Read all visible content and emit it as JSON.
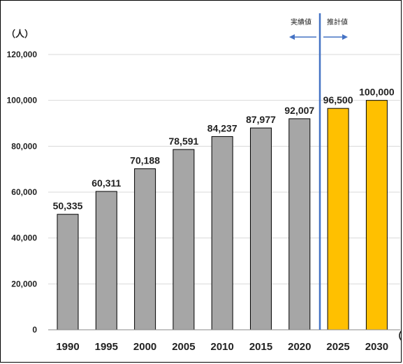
{
  "chart_data": {
    "type": "bar",
    "ylabel": "（人）",
    "xlabel": "（年",
    "ylim": [
      0,
      120000
    ],
    "yticks": [
      "0",
      "20,000",
      "40,000",
      "60,000",
      "80,000",
      "100,000",
      "120,000"
    ],
    "grid": true,
    "categories": [
      "1990",
      "1995",
      "2000",
      "2005",
      "2010",
      "2015",
      "2020",
      "2025",
      "2030"
    ],
    "values": [
      50335,
      60311,
      70188,
      78591,
      84237,
      87977,
      92007,
      96500,
      100000
    ],
    "value_labels": [
      "50,335",
      "60,311",
      "70,188",
      "78,591",
      "84,237",
      "87,977",
      "92,007",
      "96,500",
      "100,000"
    ],
    "kinds": [
      "actual",
      "actual",
      "actual",
      "actual",
      "actual",
      "actual",
      "actual",
      "estimate",
      "estimate"
    ],
    "colors": {
      "actual": "#a6a6a6",
      "estimate": "#ffc000",
      "divider": "#4472c4",
      "arrow": "#4472c4"
    },
    "annotations": {
      "actual": "実績値",
      "estimate": "推計値"
    }
  }
}
